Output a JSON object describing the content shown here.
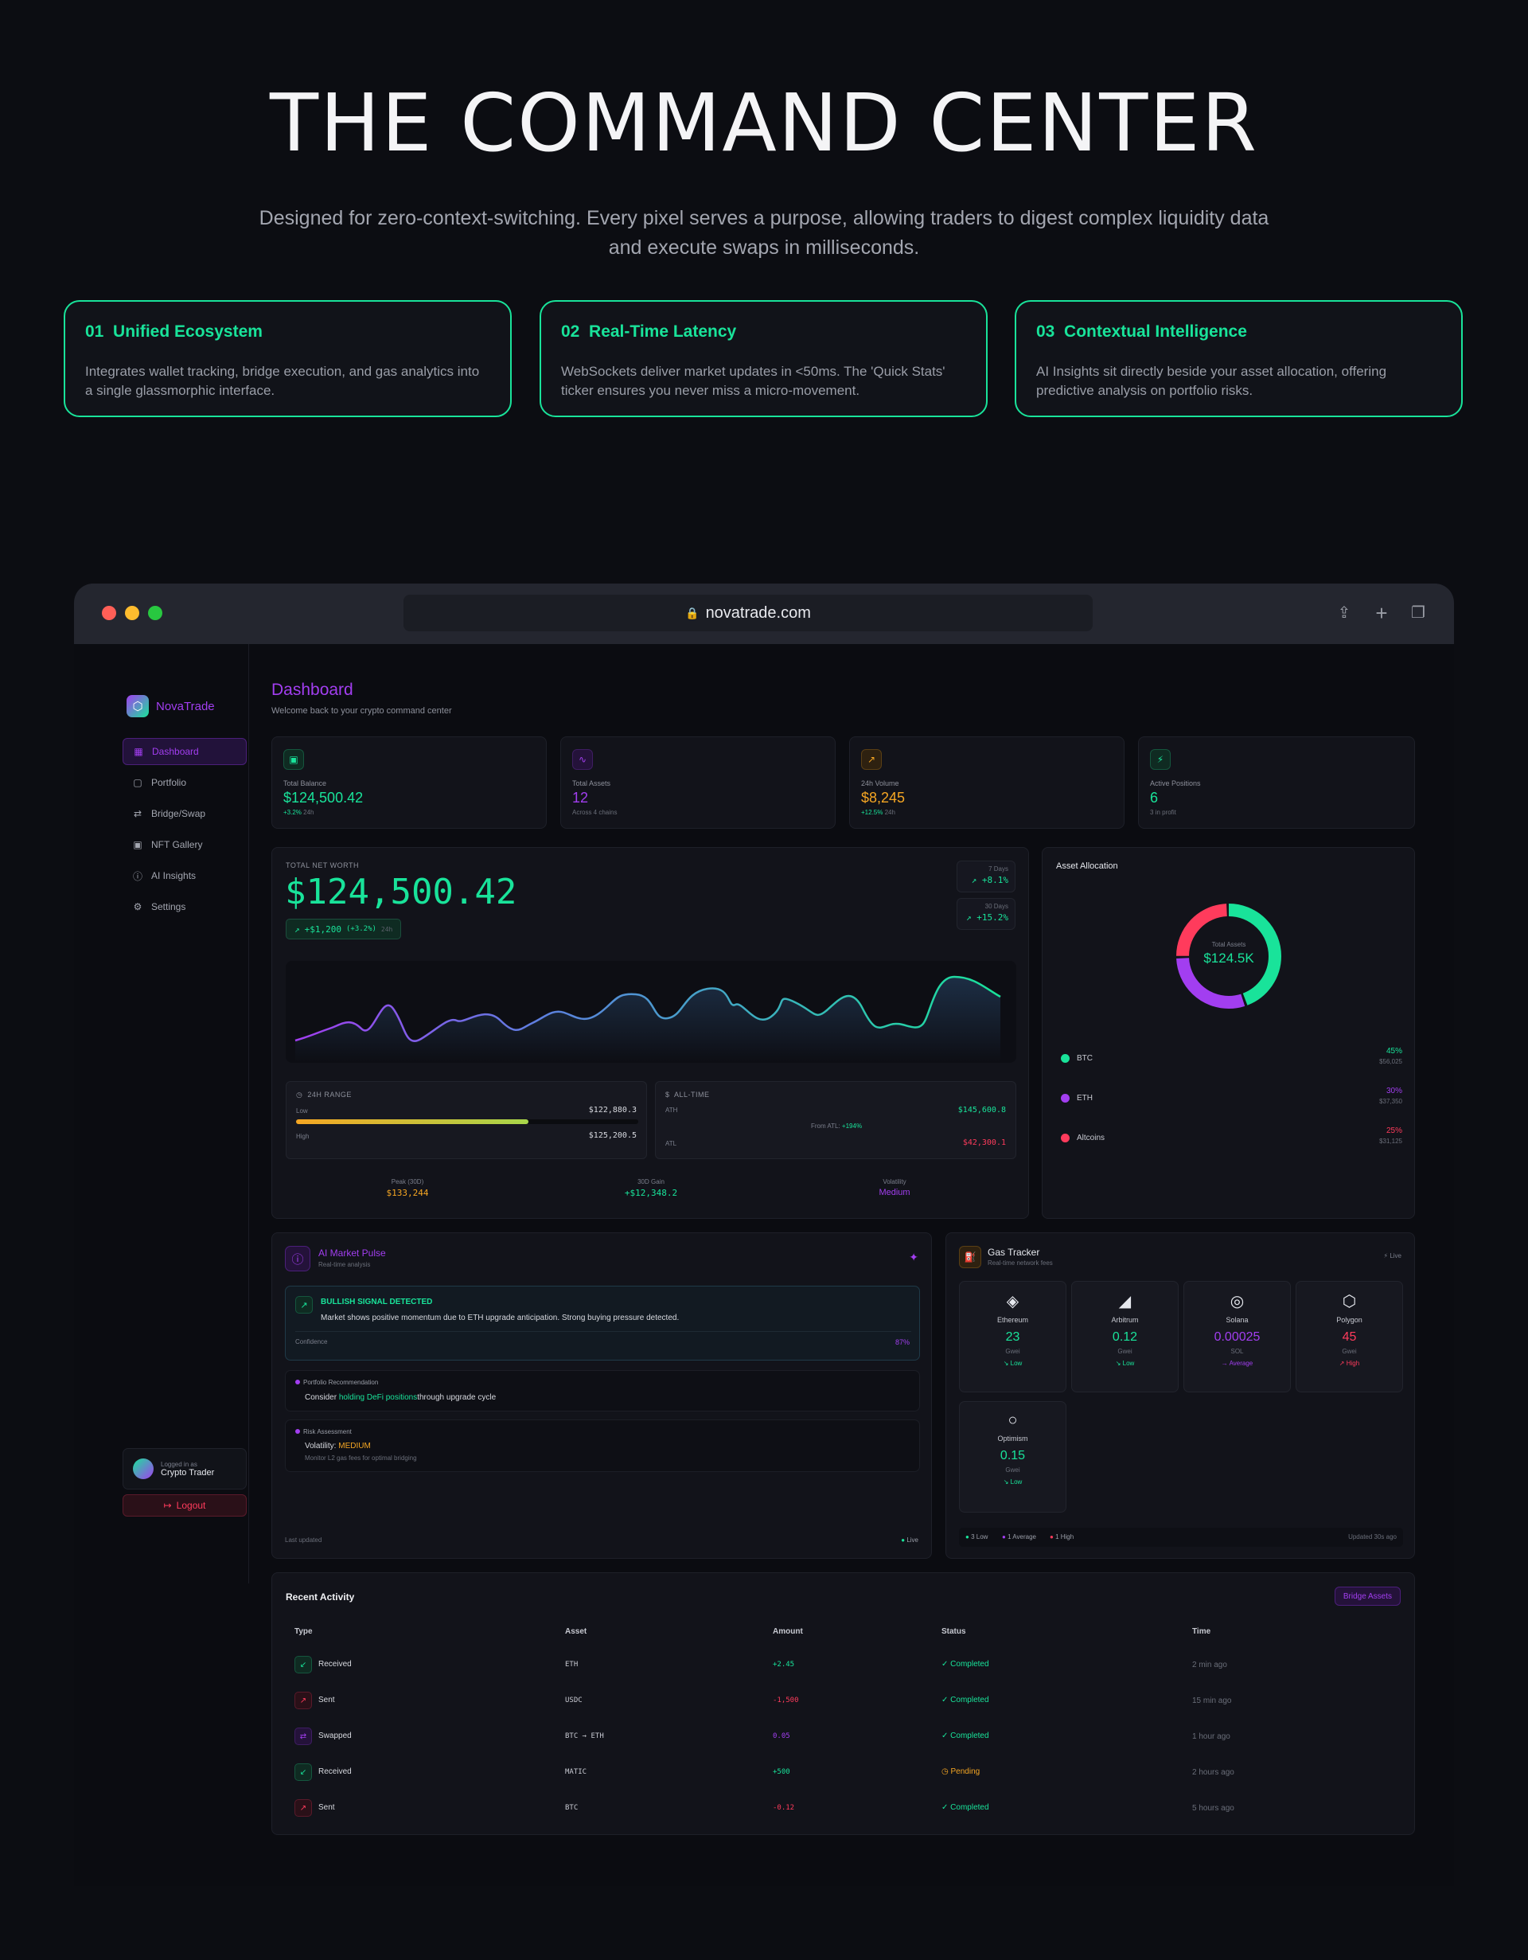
{
  "hero": {
    "title": "THE COMMAND CENTER",
    "subtitle": "Designed for zero-context-switching. Every pixel serves a purpose, allowing traders to digest complex liquidity data and execute swaps in milliseconds.",
    "features": [
      {
        "num": "01",
        "title": "Unified Ecosystem",
        "desc": "Integrates wallet tracking, bridge execution, and gas analytics into a single glassmorphic interface."
      },
      {
        "num": "02",
        "title": "Real-Time Latency",
        "desc": "WebSockets deliver market updates in <50ms. The 'Quick Stats' ticker ensures you never miss a micro-movement."
      },
      {
        "num": "03",
        "title": "Contextual Intelligence",
        "desc": "AI Insights sit directly beside your asset allocation, offering predictive analysis on portfolio risks."
      }
    ]
  },
  "browser": {
    "url": "novatrade.com",
    "lock_icon": "lock-icon"
  },
  "sidebar": {
    "brand": "NovaTrade",
    "items": [
      {
        "label": "Dashboard",
        "icon": "grid-icon"
      },
      {
        "label": "Portfolio",
        "icon": "wallet-icon"
      },
      {
        "label": "Bridge/Swap",
        "icon": "swap-icon"
      },
      {
        "label": "NFT Gallery",
        "icon": "image-icon"
      },
      {
        "label": "AI Insights",
        "icon": "brain-icon"
      },
      {
        "label": "Settings",
        "icon": "gear-icon"
      }
    ],
    "user_caption": "Logged in as",
    "user_name": "Crypto Trader",
    "logout": "Logout"
  },
  "header": {
    "title": "Dashboard",
    "subtitle": "Welcome back to your crypto command center"
  },
  "stats": [
    {
      "label": "Total Balance",
      "value": "$124,500.42",
      "change": "+3.2%",
      "sub": "24h"
    },
    {
      "label": "Total Assets",
      "value": "12",
      "sub": "Across 4 chains"
    },
    {
      "label": "24h Volume",
      "value": "$8,245",
      "change": "+12.5%",
      "sub": "24h"
    },
    {
      "label": "Active Positions",
      "value": "6",
      "sub": "3 in profit"
    }
  ],
  "networth": {
    "label": "TOTAL NET WORTH",
    "value": "$124,500.42",
    "change": "+$1,200",
    "change_pct": "(+3.2%)",
    "period": "24h",
    "badges": [
      {
        "label": "7 Days",
        "value": "+8.1%"
      },
      {
        "label": "30 Days",
        "value": "+15.2%"
      }
    ],
    "range_title": "24H RANGE",
    "low_label": "Low",
    "low": "$122,880.3",
    "high_label": "High",
    "high": "$125,200.5",
    "range_fill": 0.68,
    "alltime_title": "ALL-TIME",
    "ath_label": "ATH",
    "ath": "$145,600.8",
    "from_atl_label": "From ATL:",
    "from_atl": "+194%",
    "atl_label": "ATL",
    "atl": "$42,300.1",
    "footer": [
      {
        "label": "Peak (30D)",
        "value": "$133,244"
      },
      {
        "label": "30D Gain",
        "value": "+$12,348.2"
      },
      {
        "label": "Volatility",
        "value": "Medium"
      }
    ]
  },
  "allocation": {
    "title": "Asset Allocation",
    "center_label": "Total Assets",
    "center_value": "$124.5K",
    "items": [
      {
        "name": "BTC",
        "pct": "45%",
        "amount": "$56,025",
        "color": "#19e39a",
        "share": 45
      },
      {
        "name": "ETH",
        "pct": "30%",
        "amount": "$37,350",
        "color": "#a23ef0",
        "share": 30
      },
      {
        "name": "Altcoins",
        "pct": "25%",
        "amount": "$31,125",
        "color": "#ff3b5c",
        "share": 25
      }
    ]
  },
  "ai": {
    "title": "AI Market Pulse",
    "subtitle": "Real-time analysis",
    "signal_title": "BULLISH SIGNAL DETECTED",
    "signal_text": "Market shows positive momentum due to ETH upgrade anticipation. Strong buying pressure detected.",
    "confidence_label": "Confidence",
    "confidence": "87%",
    "rec_title": "Portfolio Recommendation",
    "rec_pre": "Consider",
    "rec_highlight": "holding DeFi positions",
    "rec_post": "through upgrade cycle",
    "risk_title": "Risk Assessment",
    "risk_label": "Volatility:",
    "risk_value": "MEDIUM",
    "risk_note": "Monitor L2 gas fees for optimal bridging",
    "last_updated": "Last updated",
    "live": "Live"
  },
  "gas": {
    "title": "Gas Tracker",
    "subtitle": "Real-time network fees",
    "live": "Live",
    "networks": [
      {
        "name": "Ethereum",
        "value": "23",
        "unit": "Gwei",
        "level": "Low",
        "icon": "ethereum-icon"
      },
      {
        "name": "Arbitrum",
        "value": "0.12",
        "unit": "Gwei",
        "level": "Low",
        "icon": "arbitrum-icon"
      },
      {
        "name": "Solana",
        "value": "0.00025",
        "unit": "SOL",
        "level": "Average",
        "icon": "solana-icon"
      },
      {
        "name": "Polygon",
        "value": "45",
        "unit": "Gwei",
        "level": "High",
        "icon": "polygon-icon"
      },
      {
        "name": "Optimism",
        "value": "0.15",
        "unit": "Gwei",
        "level": "Low",
        "icon": "optimism-icon"
      }
    ],
    "legend": [
      "3 Low",
      "1 Average",
      "1 High"
    ],
    "updated": "Updated 30s ago"
  },
  "activity": {
    "title": "Recent Activity",
    "button": "Bridge Assets",
    "columns": [
      "Type",
      "Asset",
      "Amount",
      "Status",
      "Time"
    ],
    "rows": [
      {
        "type": "Received",
        "asset": "ETH",
        "amount": "+2.45",
        "status": "Completed",
        "time": "2 min ago"
      },
      {
        "type": "Sent",
        "asset": "USDC",
        "amount": "-1,500",
        "status": "Completed",
        "time": "15 min ago"
      },
      {
        "type": "Swapped",
        "asset": "BTC → ETH",
        "amount": "0.05",
        "status": "Completed",
        "time": "1 hour ago"
      },
      {
        "type": "Received",
        "asset": "MATIC",
        "amount": "+500",
        "status": "Pending",
        "time": "2 hours ago"
      },
      {
        "type": "Sent",
        "asset": "BTC",
        "amount": "-0.12",
        "status": "Completed",
        "time": "5 hours ago"
      }
    ]
  }
}
